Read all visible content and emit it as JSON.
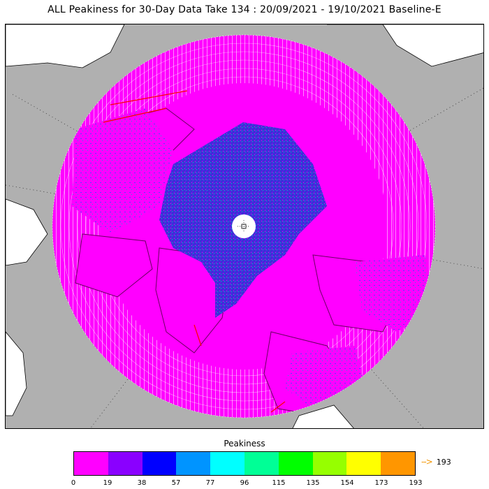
{
  "title": "ALL Peakiness for 30-Day Data Take 134 : 20/09/2021 - 19/10/2021 Baseline-E",
  "map": {
    "projection": "north-polar-stereographic",
    "land_color": "#ffffff",
    "ocean_mask_color": "#b0b0b0",
    "pole_hole_color": "#ffffff",
    "grid_style": "dotted",
    "dominant_fill_color": "#ff00ff"
  },
  "colorbar": {
    "label": "Peakiness",
    "tick_labels": [
      "0",
      "19",
      "38",
      "57",
      "77",
      "96",
      "115",
      "135",
      "154",
      "173",
      "193"
    ],
    "colors": [
      "#ff00ff",
      "#8a00ff",
      "#0000ff",
      "#0094ff",
      "#00ffff",
      "#00ff96",
      "#00ff00",
      "#96ff00",
      "#ffff00",
      "#ff9600"
    ],
    "overflow_arrow": "-->",
    "overflow_value": "193",
    "overflow_color": "#f29500"
  }
}
